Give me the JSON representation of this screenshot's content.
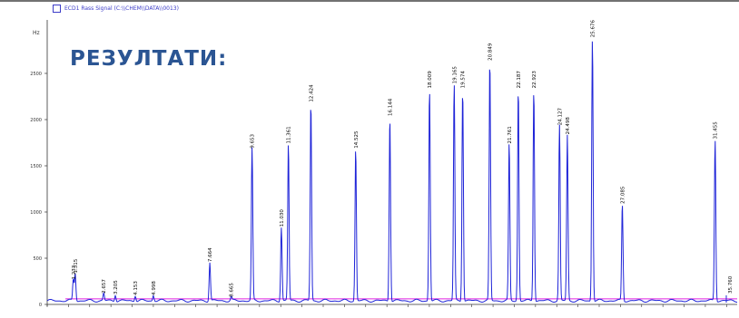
{
  "heading": "РЕЗУЛТАТИ:",
  "legend_text": "ECD1 Rass Signal (C:\\\\CHEM\\\\DATA\\\\0013)",
  "chart_data": {
    "type": "line",
    "xlabel": "",
    "ylabel": "Hz",
    "ylim": [
      0,
      3000
    ],
    "xlim": [
      0,
      32.5
    ],
    "yticks": [
      0,
      500,
      1000,
      1500,
      2000,
      2500
    ],
    "line_color": "#1f24d8",
    "baseline_color": "#e020e0",
    "peaks": [
      {
        "label": "1.233",
        "x": 1.23,
        "h": 230
      },
      {
        "label": "1.315",
        "x": 1.32,
        "h": 300
      },
      {
        "label": "2.657",
        "x": 2.66,
        "h": 80
      },
      {
        "label": "3.205",
        "x": 3.21,
        "h": 70
      },
      {
        "label": "4.153",
        "x": 4.15,
        "h": 60
      },
      {
        "label": "4.998",
        "x": 5.0,
        "h": 60
      },
      {
        "label": "7.664",
        "x": 7.66,
        "h": 420
      },
      {
        "label": "8.665",
        "x": 8.67,
        "h": 40
      },
      {
        "label": "9.653",
        "x": 9.65,
        "h": 1650
      },
      {
        "label": "11.030",
        "x": 11.03,
        "h": 800
      },
      {
        "label": "11.361",
        "x": 11.36,
        "h": 1700
      },
      {
        "label": "12.424",
        "x": 12.42,
        "h": 2150
      },
      {
        "label": "14.525",
        "x": 14.53,
        "h": 1650
      },
      {
        "label": "16.144",
        "x": 16.14,
        "h": 2000
      },
      {
        "label": "18.009",
        "x": 18.01,
        "h": 2300
      },
      {
        "label": "19.165",
        "x": 19.17,
        "h": 2350
      },
      {
        "label": "19.574",
        "x": 19.57,
        "h": 2300
      },
      {
        "label": "20.849",
        "x": 20.85,
        "h": 2600
      },
      {
        "label": "21.761",
        "x": 21.76,
        "h": 1700
      },
      {
        "label": "22.187",
        "x": 22.19,
        "h": 2300
      },
      {
        "label": "22.923",
        "x": 22.92,
        "h": 2300
      },
      {
        "label": "24.127",
        "x": 24.13,
        "h": 1900
      },
      {
        "label": "24.498",
        "x": 24.5,
        "h": 1800
      },
      {
        "label": "25.676",
        "x": 25.68,
        "h": 2850
      },
      {
        "label": "27.085",
        "x": 27.09,
        "h": 1050
      },
      {
        "label": "31.455",
        "x": 31.46,
        "h": 1750
      },
      {
        "label": "35.760",
        "x": 35.76,
        "h": 40
      }
    ]
  }
}
